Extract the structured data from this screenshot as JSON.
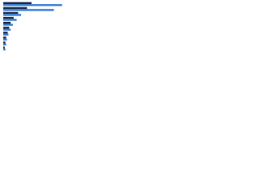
{
  "chart_data": {
    "type": "bar",
    "orientation": "horizontal",
    "categories": [
      null,
      null,
      null,
      null,
      null,
      null,
      null,
      null,
      null,
      null
    ],
    "series": [
      {
        "color": "#1b2a4a",
        "values": [
          38,
          32,
          20,
          14,
          10,
          8,
          6,
          4,
          3,
          2
        ]
      },
      {
        "color": "#3a7fd5",
        "values": [
          79,
          68,
          24,
          18,
          13,
          10,
          7,
          5,
          4,
          3
        ]
      }
    ],
    "xlim": [
      0,
      100
    ]
  }
}
